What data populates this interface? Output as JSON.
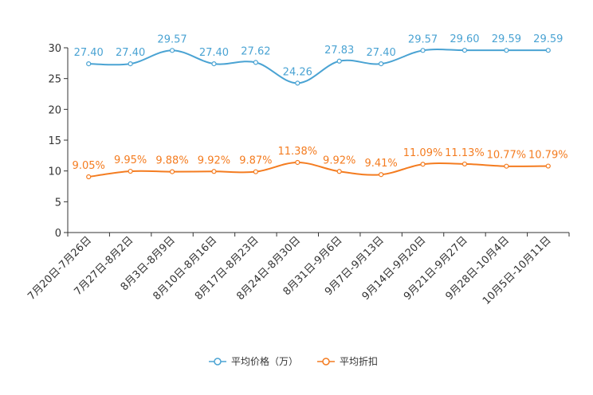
{
  "chart_data": {
    "type": "line",
    "categories": [
      "7月20日-7月26日",
      "7月27日-8月2日",
      "8月3日-8月9日",
      "8月10日-8月16日",
      "8月17日-8月23日",
      "8月24日-8月30日",
      "8月31日-9月6日",
      "9月7日-9月13日",
      "9月14日-9月20日",
      "9月21日-9月27日",
      "9月28日-10月4日",
      "10月5日-10月11日"
    ],
    "ylim": [
      0,
      30
    ],
    "yticks": [
      0,
      5,
      10,
      15,
      20,
      25,
      30
    ],
    "smooth": true,
    "series": [
      {
        "name": "平均价格（万）",
        "color": "#4aa3d3",
        "values": [
          27.4,
          27.4,
          29.57,
          27.4,
          27.62,
          24.26,
          27.83,
          27.4,
          29.57,
          29.6,
          29.59,
          29.59
        ],
        "labels": [
          "27.40",
          "27.40",
          "29.57",
          "27.40",
          "27.62",
          "24.26",
          "27.83",
          "27.40",
          "29.57",
          "29.60",
          "29.59",
          "29.59"
        ]
      },
      {
        "name": "平均折扣",
        "color": "#f47c20",
        "values": [
          9.05,
          9.95,
          9.88,
          9.92,
          9.87,
          11.38,
          9.92,
          9.41,
          11.09,
          11.13,
          10.77,
          10.79
        ],
        "labels": [
          "9.05%",
          "9.95%",
          "9.88%",
          "9.92%",
          "9.87%",
          "11.38%",
          "9.92%",
          "9.41%",
          "11.09%",
          "11.13%",
          "10.77%",
          "10.79%"
        ]
      }
    ]
  }
}
